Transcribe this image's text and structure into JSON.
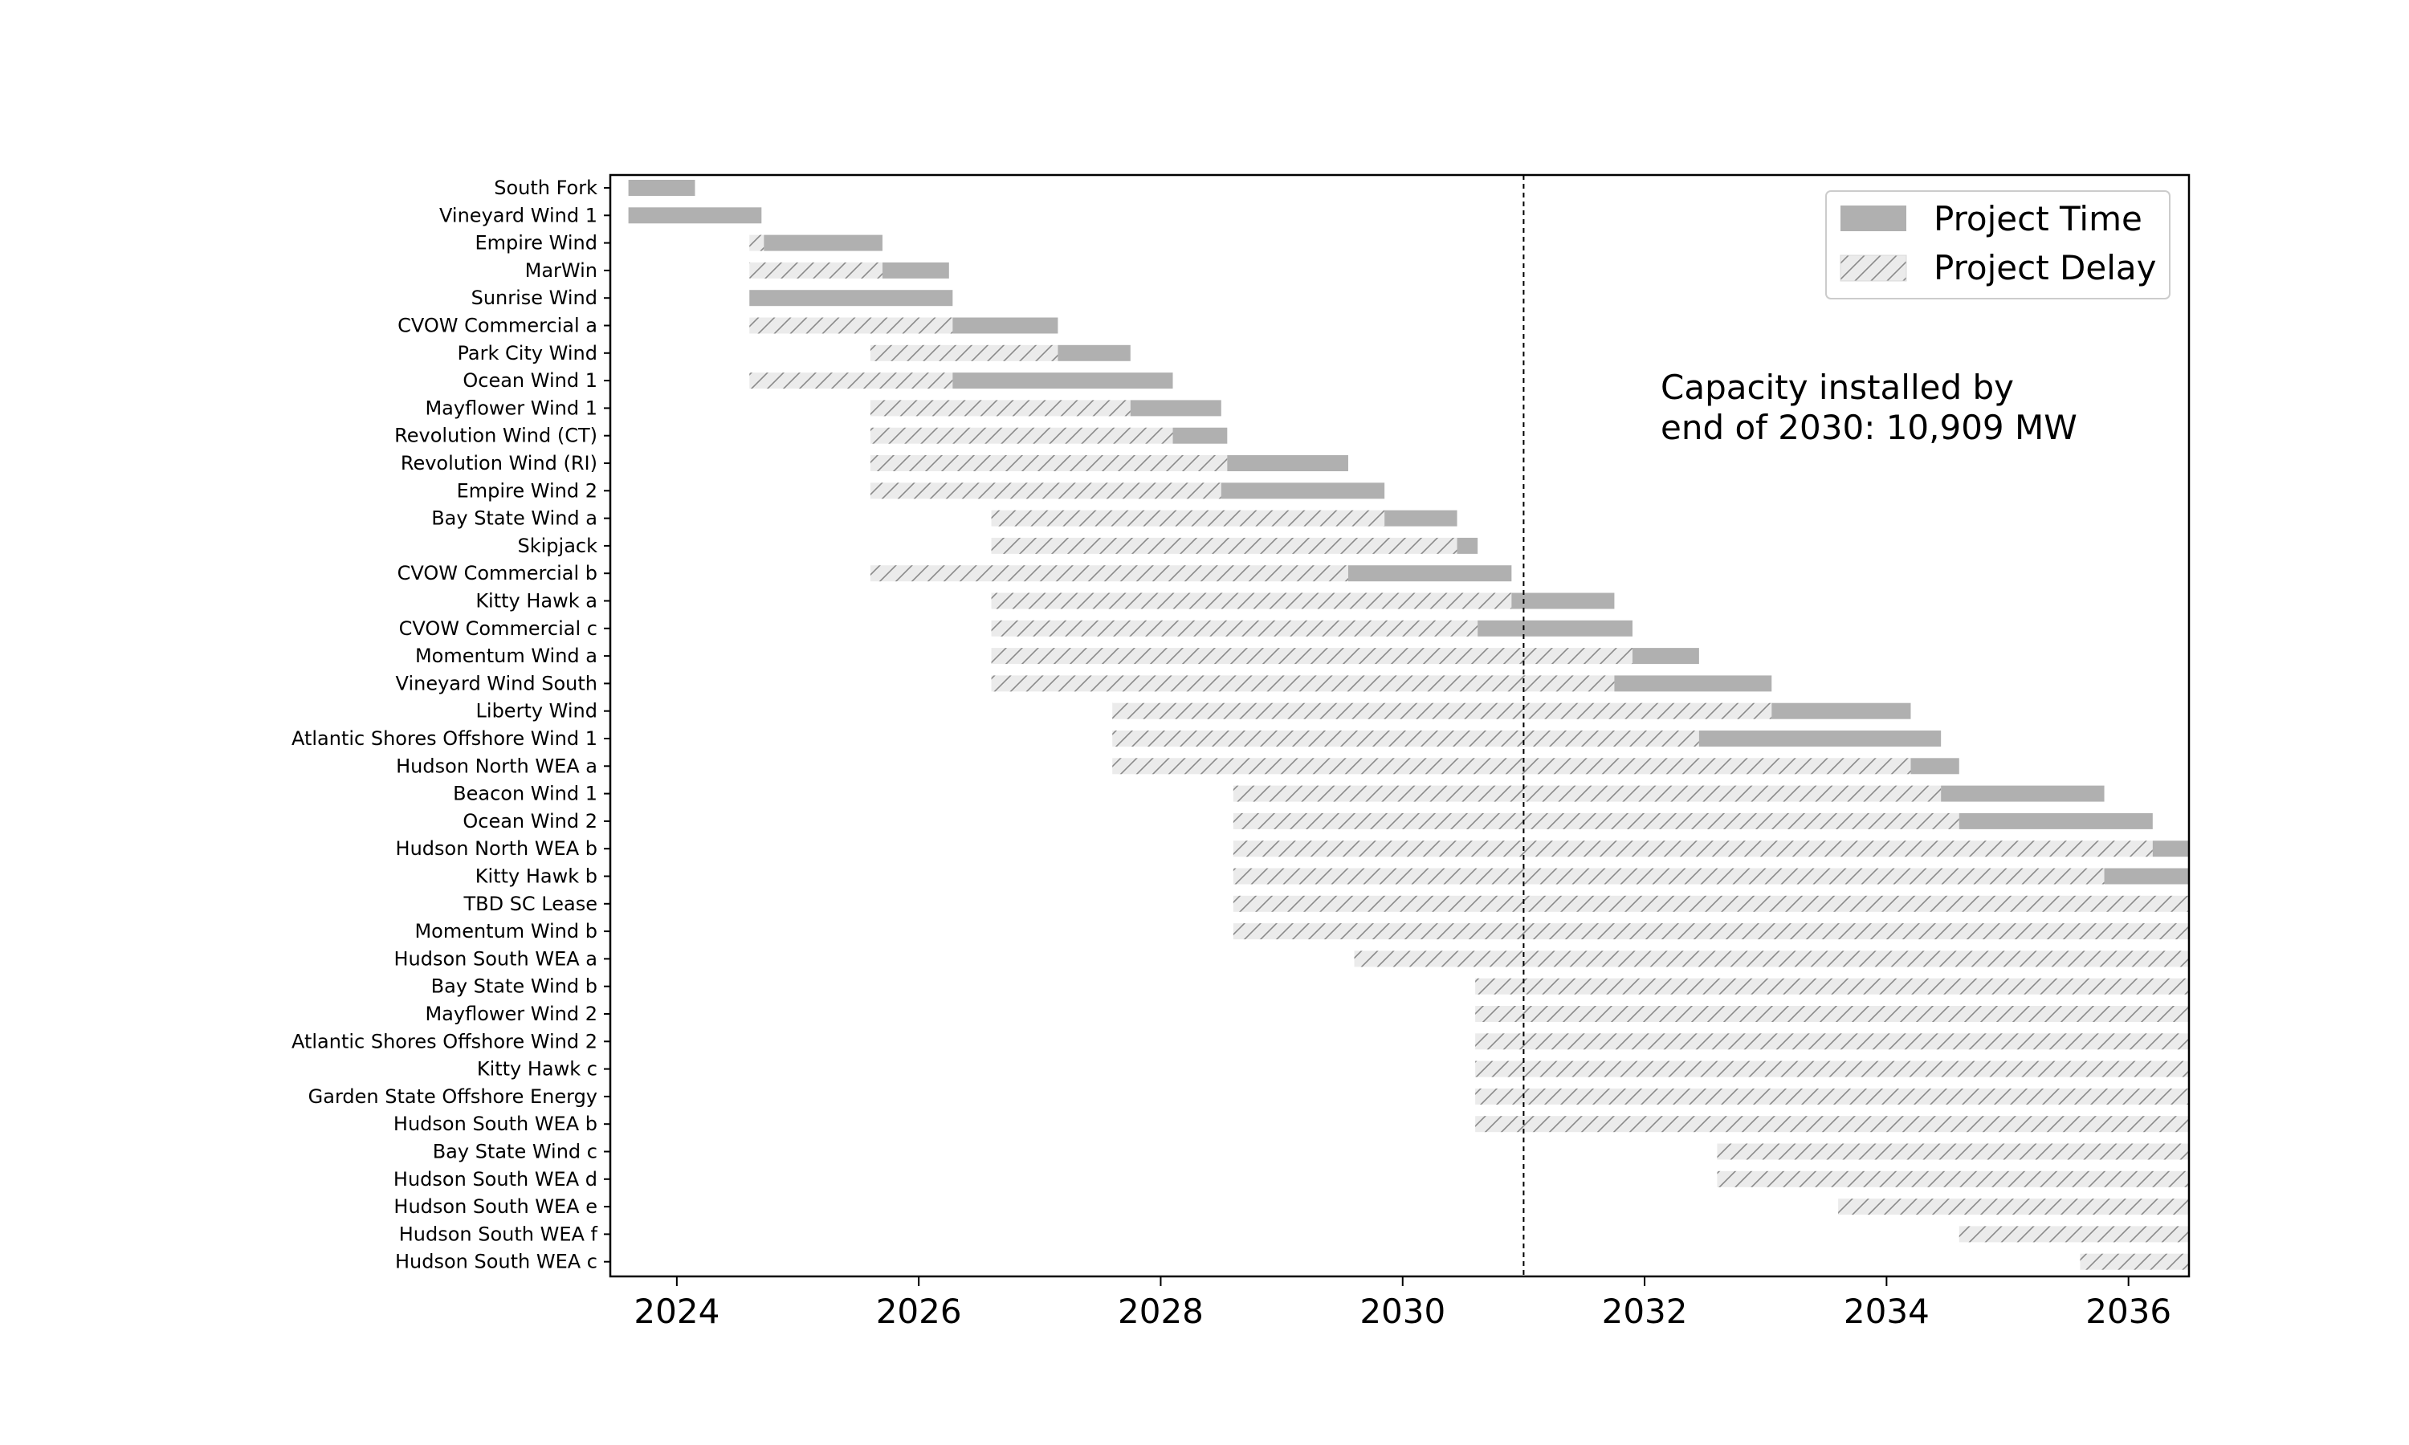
{
  "chart_data": {
    "type": "gantt",
    "xlim": [
      2023.45,
      2036.5
    ],
    "x_ticks": [
      2024,
      2026,
      2028,
      2030,
      2032,
      2034,
      2036
    ],
    "cutoff_line": 2031.0,
    "legend": {
      "placement": "top-right",
      "time_label": "Project Time",
      "delay_label": "Project Delay"
    },
    "annotation": "Capacity installed by\nend of 2030: 10,909 MW",
    "colors": {
      "time": "#b0b0b0",
      "delay": "#ebebeb",
      "hatch": "#8a8a8a",
      "frame": "#000000"
    },
    "series_keys": [
      "delay_start",
      "time_start",
      "end"
    ],
    "projects": [
      {
        "name": "South Fork",
        "delay_start": 2023.6,
        "time_start": 2023.6,
        "end": 2024.15
      },
      {
        "name": "Vineyard Wind 1",
        "delay_start": 2023.6,
        "time_start": 2023.6,
        "end": 2024.7
      },
      {
        "name": "Empire Wind",
        "delay_start": 2024.6,
        "time_start": 2024.72,
        "end": 2025.7
      },
      {
        "name": "MarWin",
        "delay_start": 2024.6,
        "time_start": 2025.7,
        "end": 2026.25
      },
      {
        "name": "Sunrise Wind",
        "delay_start": 2024.6,
        "time_start": 2024.6,
        "end": 2026.28
      },
      {
        "name": "CVOW Commercial a",
        "delay_start": 2024.6,
        "time_start": 2026.28,
        "end": 2027.15
      },
      {
        "name": "Park City Wind",
        "delay_start": 2025.6,
        "time_start": 2027.15,
        "end": 2027.75
      },
      {
        "name": "Ocean Wind 1",
        "delay_start": 2024.6,
        "time_start": 2026.28,
        "end": 2028.1
      },
      {
        "name": "Mayflower Wind 1",
        "delay_start": 2025.6,
        "time_start": 2027.75,
        "end": 2028.5
      },
      {
        "name": "Revolution Wind (CT)",
        "delay_start": 2025.6,
        "time_start": 2028.1,
        "end": 2028.55
      },
      {
        "name": "Revolution Wind (RI)",
        "delay_start": 2025.6,
        "time_start": 2028.55,
        "end": 2029.55
      },
      {
        "name": "Empire Wind 2",
        "delay_start": 2025.6,
        "time_start": 2028.5,
        "end": 2029.85
      },
      {
        "name": "Bay State Wind a",
        "delay_start": 2026.6,
        "time_start": 2029.85,
        "end": 2030.45
      },
      {
        "name": "Skipjack",
        "delay_start": 2026.6,
        "time_start": 2030.45,
        "end": 2030.62
      },
      {
        "name": "CVOW Commercial b",
        "delay_start": 2025.6,
        "time_start": 2029.55,
        "end": 2030.9
      },
      {
        "name": "Kitty Hawk a",
        "delay_start": 2026.6,
        "time_start": 2030.9,
        "end": 2031.75
      },
      {
        "name": "CVOW Commercial c",
        "delay_start": 2026.6,
        "time_start": 2030.62,
        "end": 2031.9
      },
      {
        "name": "Momentum Wind a",
        "delay_start": 2026.6,
        "time_start": 2031.9,
        "end": 2032.45
      },
      {
        "name": "Vineyard Wind South",
        "delay_start": 2026.6,
        "time_start": 2031.75,
        "end": 2033.05
      },
      {
        "name": "Liberty Wind",
        "delay_start": 2027.6,
        "time_start": 2033.05,
        "end": 2034.2
      },
      {
        "name": "Atlantic Shores Offshore Wind 1",
        "delay_start": 2027.6,
        "time_start": 2032.45,
        "end": 2034.45
      },
      {
        "name": "Hudson North WEA a",
        "delay_start": 2027.6,
        "time_start": 2034.2,
        "end": 2034.6
      },
      {
        "name": "Beacon Wind 1",
        "delay_start": 2028.6,
        "time_start": 2034.45,
        "end": 2035.8
      },
      {
        "name": "Ocean Wind 2",
        "delay_start": 2028.6,
        "time_start": 2034.6,
        "end": 2036.2
      },
      {
        "name": "Hudson North WEA b",
        "delay_start": 2028.6,
        "time_start": 2036.2,
        "end": 2036.6
      },
      {
        "name": "Kitty Hawk b",
        "delay_start": 2028.6,
        "time_start": 2035.8,
        "end": 2036.8
      },
      {
        "name": "TBD SC Lease",
        "delay_start": 2028.6,
        "time_start": 2036.8,
        "end": 2036.8
      },
      {
        "name": "Momentum Wind b",
        "delay_start": 2028.6,
        "time_start": 2036.6,
        "end": 2036.8
      },
      {
        "name": "Hudson South WEA a",
        "delay_start": 2029.6,
        "time_start": 2036.8,
        "end": 2036.8
      },
      {
        "name": "Bay State Wind b",
        "delay_start": 2030.6,
        "time_start": 2036.8,
        "end": 2036.8
      },
      {
        "name": "Mayflower Wind 2",
        "delay_start": 2030.6,
        "time_start": 2036.8,
        "end": 2036.8
      },
      {
        "name": "Atlantic Shores Offshore Wind 2",
        "delay_start": 2030.6,
        "time_start": 2036.8,
        "end": 2036.8
      },
      {
        "name": "Kitty Hawk c",
        "delay_start": 2030.6,
        "time_start": 2036.8,
        "end": 2036.8
      },
      {
        "name": "Garden State Offshore Energy",
        "delay_start": 2030.6,
        "time_start": 2036.8,
        "end": 2036.8
      },
      {
        "name": "Hudson South WEA b",
        "delay_start": 2030.6,
        "time_start": 2036.8,
        "end": 2036.8
      },
      {
        "name": "Bay State Wind c",
        "delay_start": 2032.6,
        "time_start": 2036.8,
        "end": 2036.8
      },
      {
        "name": "Hudson South WEA d",
        "delay_start": 2032.6,
        "time_start": 2036.8,
        "end": 2036.8
      },
      {
        "name": "Hudson South WEA e",
        "delay_start": 2033.6,
        "time_start": 2036.8,
        "end": 2036.8
      },
      {
        "name": "Hudson South WEA f",
        "delay_start": 2034.6,
        "time_start": 2036.8,
        "end": 2036.8
      },
      {
        "name": "Hudson South WEA c",
        "delay_start": 2035.6,
        "time_start": 2036.8,
        "end": 2036.8
      }
    ]
  }
}
